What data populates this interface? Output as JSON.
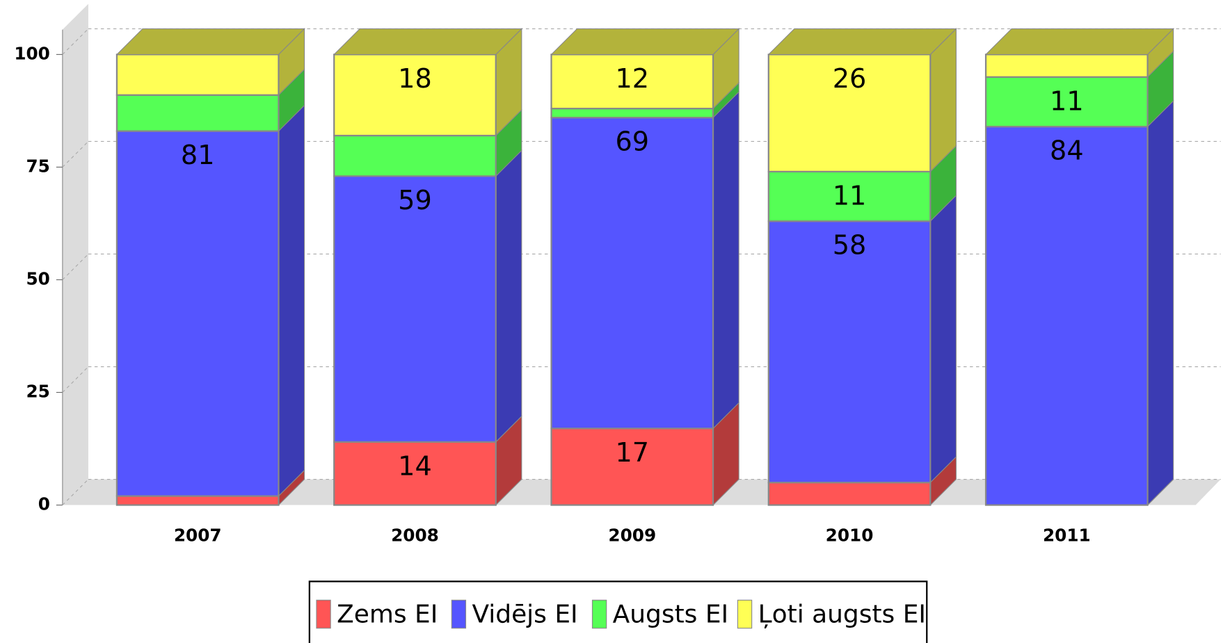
{
  "chart_data": {
    "type": "bar",
    "stacked": true,
    "categories": [
      "2007",
      "2008",
      "2009",
      "2010",
      "2011"
    ],
    "series": [
      {
        "name": "Zems EI",
        "color": "#ff5555",
        "values": [
          2,
          14,
          17,
          5,
          0
        ]
      },
      {
        "name": "Vidējs EI",
        "color": "#5555ff",
        "values": [
          81,
          59,
          69,
          58,
          84
        ]
      },
      {
        "name": "Augsts EI",
        "color": "#55ff55",
        "values": [
          8,
          9,
          2,
          11,
          11
        ]
      },
      {
        "name": "Ļoti augsts EI",
        "color": "#ffff55",
        "values": [
          9,
          18,
          12,
          26,
          5
        ]
      }
    ],
    "ylim": [
      0,
      105
    ],
    "yticks": [
      0,
      25,
      50,
      75,
      100
    ],
    "grid": true,
    "legend": "bottom"
  }
}
